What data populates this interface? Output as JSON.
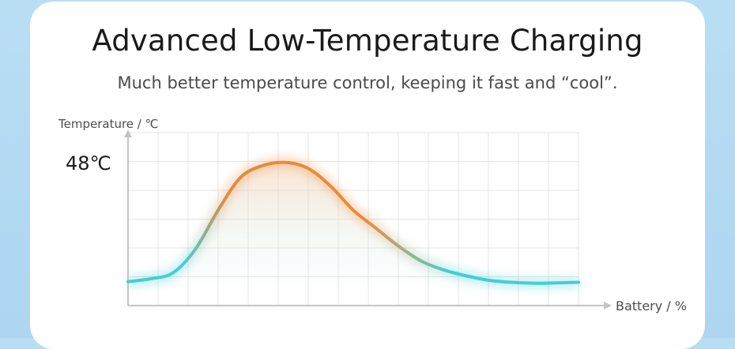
{
  "header": {
    "title": "Advanced Low-Temperature Charging",
    "subtitle": "Much better temperature control, keeping it fast and “cool”."
  },
  "chart_data": {
    "type": "line",
    "title": "Advanced Low-Temperature Charging",
    "subtitle": "Much better temperature control, keeping it fast and “cool”.",
    "xlabel": "Battery / %",
    "ylabel": "Temperature / ℃",
    "annotations": [
      {
        "label": "48℃",
        "y": 48
      }
    ],
    "ylim": [
      0,
      58
    ],
    "xlim": [
      0,
      100
    ],
    "grid": true,
    "series": [
      {
        "values_x": [
          0,
          5,
          10,
          15,
          20,
          25,
          30,
          35,
          40,
          45,
          50,
          55,
          60,
          65,
          70,
          75,
          80,
          85,
          90,
          95,
          100
        ],
        "values_y": [
          8,
          9,
          11,
          19,
          32,
          43,
          47,
          48,
          46,
          40,
          32,
          26,
          20,
          15,
          12,
          10,
          8.5,
          7.8,
          7.5,
          7.6,
          7.8
        ]
      }
    ],
    "colors": {
      "cool": "#40cfd6",
      "hot": "#ef8a33",
      "grid": "#e4e4e4",
      "axis": "#c4c4c4"
    }
  }
}
